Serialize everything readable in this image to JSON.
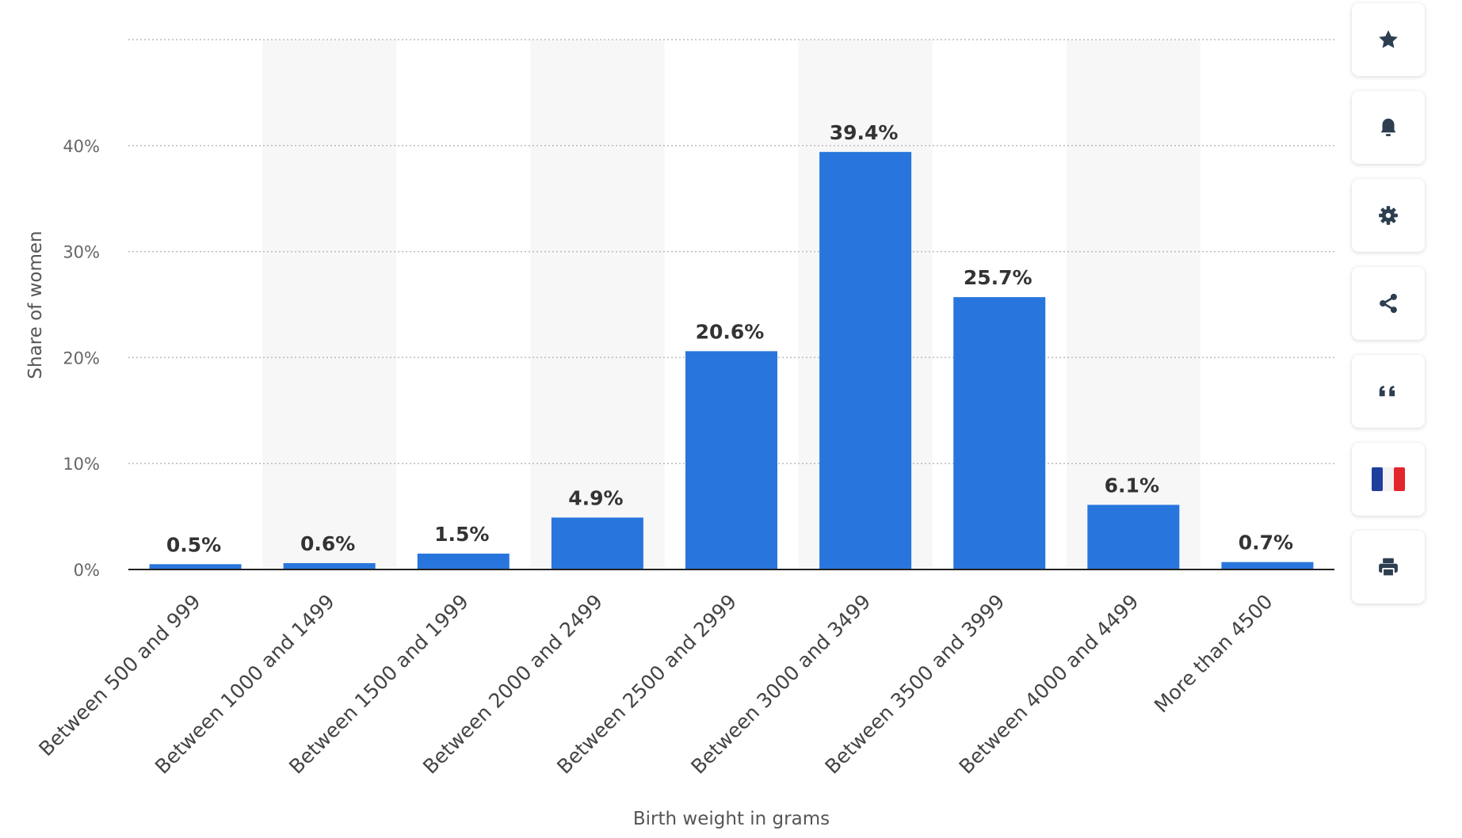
{
  "chart_data": {
    "type": "bar",
    "categories": [
      "Between 500 and 999",
      "Between 1000 and 1499",
      "Between 1500 and 1999",
      "Between 2000 and 2499",
      "Between 2500 and 2999",
      "Between 3000 and 3499",
      "Between 3500 and 3999",
      "Between 4000 and 4499",
      "More than 4500"
    ],
    "values": [
      0.5,
      0.6,
      1.5,
      4.9,
      20.6,
      39.4,
      25.7,
      6.1,
      0.7
    ],
    "value_labels": [
      "0.5%",
      "0.6%",
      "1.5%",
      "4.9%",
      "20.6%",
      "39.4%",
      "25.7%",
      "6.1%",
      "0.7%"
    ],
    "xlabel": "Birth weight in grams",
    "ylabel": "Share of women",
    "yticks": [
      "0%",
      "10%",
      "20%",
      "30%",
      "40%"
    ],
    "ylim": [
      0,
      50
    ],
    "grid": true,
    "bar_color": "#2876dd"
  },
  "toolbar": {
    "buttons": [
      {
        "icon": "star-icon"
      },
      {
        "icon": "bell-icon"
      },
      {
        "icon": "gear-icon"
      },
      {
        "icon": "share-icon"
      },
      {
        "icon": "quote-icon"
      },
      {
        "icon": "french-flag-icon"
      },
      {
        "icon": "print-icon"
      }
    ]
  }
}
